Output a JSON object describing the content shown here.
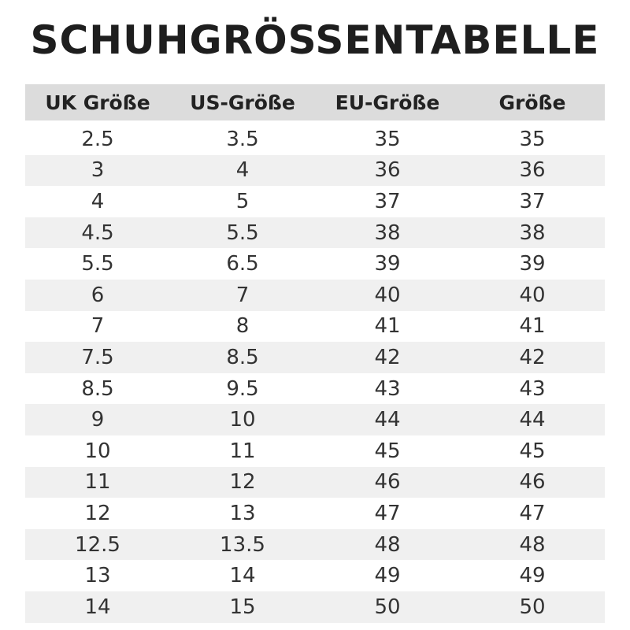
{
  "title": "SCHUHGRÖSSENTABELLE",
  "headers": [
    "UK Größe",
    "US-Größe",
    "EU-Größe",
    "Größe"
  ],
  "rows": [
    [
      "2.5",
      "3.5",
      "35",
      "35"
    ],
    [
      "3",
      "4",
      "36",
      "36"
    ],
    [
      "4",
      "5",
      "37",
      "37"
    ],
    [
      "4.5",
      "5.5",
      "38",
      "38"
    ],
    [
      "5.5",
      "6.5",
      "39",
      "39"
    ],
    [
      "6",
      "7",
      "40",
      "40"
    ],
    [
      "7",
      "8",
      "41",
      "41"
    ],
    [
      "7.5",
      "8.5",
      "42",
      "42"
    ],
    [
      "8.5",
      "9.5",
      "43",
      "43"
    ],
    [
      "9",
      "10",
      "44",
      "44"
    ],
    [
      "10",
      "11",
      "45",
      "45"
    ],
    [
      "11",
      "12",
      "46",
      "46"
    ],
    [
      "12",
      "13",
      "47",
      "47"
    ],
    [
      "12.5",
      "13.5",
      "48",
      "48"
    ],
    [
      "13",
      "14",
      "49",
      "49"
    ],
    [
      "14",
      "15",
      "50",
      "50"
    ]
  ],
  "colors": {
    "header_bg": "#dcdcdc",
    "stripe_bg": "#f0f0f0"
  }
}
